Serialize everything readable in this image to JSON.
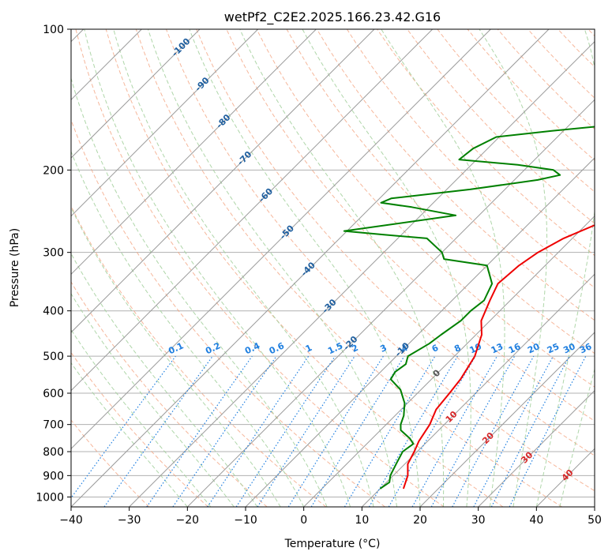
{
  "chart_data": {
    "type": "line",
    "title": "wetPf2_C2E2.2025.166.23.42.G16",
    "xlabel": "Temperature (°C)",
    "ylabel": "Pressure (hPa)",
    "xlim": [
      -40,
      50
    ],
    "ylim": [
      1050,
      100
    ],
    "y_scale": "log",
    "grid": true,
    "x_ticks": [
      -40,
      -30,
      -20,
      -10,
      0,
      10,
      20,
      30,
      40,
      50
    ],
    "y_ticks": [
      100,
      200,
      300,
      400,
      500,
      600,
      700,
      800,
      900,
      1000
    ],
    "colors": {
      "temperature": "#ee0000",
      "dewpoint": "#008000",
      "dry_adiabat": "#f4a582",
      "moist_adiabat": "#a6d2a0",
      "mixing_ratio": "#1f7fe0",
      "isotherm": "#555555",
      "isotherm_label": "#1f5f9f"
    },
    "series": [
      {
        "key": "temperature",
        "points": [
          [
            14,
            960
          ],
          [
            12.5,
            900
          ],
          [
            10.5,
            850
          ],
          [
            9.5,
            800
          ],
          [
            8.5,
            760
          ],
          [
            7.5,
            700
          ],
          [
            6,
            650
          ],
          [
            5.5,
            600
          ],
          [
            5,
            560
          ],
          [
            3.5,
            500
          ],
          [
            1,
            450
          ],
          [
            -1.5,
            420
          ],
          [
            -3.5,
            380
          ],
          [
            -5,
            350
          ],
          [
            -4.5,
            320
          ],
          [
            -3.5,
            300
          ],
          [
            -1.5,
            280
          ],
          [
            2,
            260
          ],
          [
            5.5,
            240
          ],
          [
            7,
            230
          ],
          [
            7,
            215
          ],
          [
            6.5,
            200
          ],
          [
            8,
            190
          ],
          [
            12,
            180
          ],
          [
            15.5,
            170
          ],
          [
            16.5,
            160
          ],
          [
            17,
            150
          ],
          [
            17,
            140
          ],
          [
            17.5,
            130
          ],
          [
            19,
            125
          ],
          [
            21,
            120
          ],
          [
            21.5,
            115
          ],
          [
            22,
            110
          ],
          [
            22.5,
            105
          ],
          [
            22,
            100
          ]
        ]
      },
      {
        "key": "dewpoint",
        "points": [
          [
            10,
            960
          ],
          [
            10.5,
            930
          ],
          [
            9.5,
            900
          ],
          [
            8.5,
            850
          ],
          [
            7.5,
            800
          ],
          [
            8,
            770
          ],
          [
            6.5,
            750
          ],
          [
            3.5,
            720
          ],
          [
            2.5,
            700
          ],
          [
            1.5,
            670
          ],
          [
            -0.5,
            630
          ],
          [
            -3.5,
            590
          ],
          [
            -7,
            560
          ],
          [
            -7.5,
            540
          ],
          [
            -7,
            520
          ],
          [
            -8,
            500
          ],
          [
            -6.5,
            470
          ],
          [
            -6,
            450
          ],
          [
            -5,
            420
          ],
          [
            -5,
            400
          ],
          [
            -4.5,
            380
          ],
          [
            -6,
            350
          ],
          [
            -10,
            320
          ],
          [
            -18.5,
            310
          ],
          [
            -20,
            300
          ],
          [
            -25,
            280
          ],
          [
            -33,
            275
          ],
          [
            -40.5,
            270
          ],
          [
            -24,
            250
          ],
          [
            -33,
            240
          ],
          [
            -39,
            235
          ],
          [
            -38,
            230
          ],
          [
            -26,
            220
          ],
          [
            -16,
            210
          ],
          [
            -13,
            205
          ],
          [
            -15,
            200
          ],
          [
            -22,
            195
          ],
          [
            -33,
            190
          ],
          [
            -32.5,
            180
          ],
          [
            -30.5,
            170
          ],
          [
            -22,
            165
          ],
          [
            -12,
            160
          ],
          [
            -8,
            150
          ],
          [
            -7.5,
            140
          ],
          [
            -6,
            130
          ],
          [
            -6,
            120
          ],
          [
            -7,
            115
          ],
          [
            -6.5,
            110
          ],
          [
            -5.5,
            105
          ],
          [
            -2,
            100
          ]
        ]
      }
    ],
    "isotherm_labels": [
      "-100",
      "-90",
      "-80",
      "-70",
      "-60",
      "-50",
      "-40",
      "-30",
      "-20",
      "-10",
      "0",
      "10",
      "20",
      "30",
      "40"
    ],
    "isotherm_label_values": [
      -100,
      -90,
      -80,
      -70,
      -60,
      -50,
      -40,
      -30,
      -20,
      -10,
      0,
      10,
      20,
      30,
      40
    ],
    "mixing_ratio_labels": [
      "0.1",
      "0.2",
      "0.4",
      "0.6",
      "1",
      "1.5",
      "2",
      "3",
      "4",
      "6",
      "8",
      "10",
      "13",
      "16",
      "20",
      "25",
      "30",
      "36"
    ],
    "mixing_ratio_values": [
      0.1,
      0.2,
      0.4,
      0.6,
      1,
      1.5,
      2,
      3,
      4,
      6,
      8,
      10,
      13,
      16,
      20,
      25,
      30,
      36
    ]
  }
}
